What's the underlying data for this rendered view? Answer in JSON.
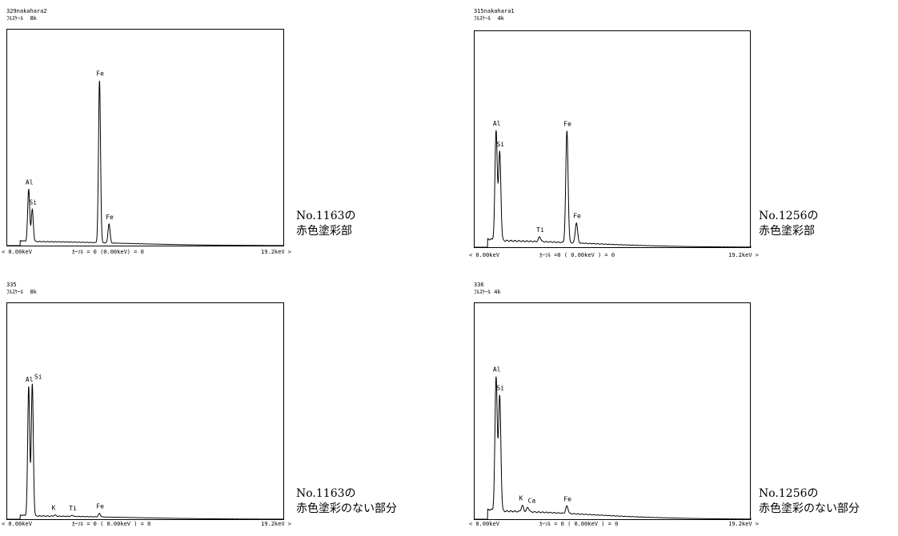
{
  "chart_data": [
    {
      "type": "line",
      "position": "top-left",
      "sample": "329nakahara2",
      "full_scale_label": "ﾌﾙｽｹｰﾙ",
      "full_scale": "8k",
      "x_min_label": "< 0.00keV",
      "x_max_label": "19.2keV >",
      "cursor_text": "ｶｰｿﾙ  =  0   (0.00keV)   =  0",
      "xlim": [
        0,
        19.2
      ],
      "ylim": [
        0,
        8000
      ],
      "caption": [
        "No.1163の",
        "赤色塗彩部"
      ],
      "peaks": [
        {
          "label": "Al",
          "x": 1.49,
          "y": 1950
        },
        {
          "label": "Si",
          "x": 1.74,
          "y": 1200
        },
        {
          "label": "Fe",
          "x": 6.4,
          "y": 6100
        },
        {
          "label": "Fe",
          "x": 7.06,
          "y": 720
        }
      ],
      "baseline": 150,
      "peak_width": 0.07
    },
    {
      "type": "line",
      "position": "top-right",
      "sample": "315nakahara1",
      "full_scale_label": "ﾌﾙｽｹｰﾙ",
      "full_scale": "4k",
      "x_min_label": "< 0.00keV",
      "x_max_label": "19.2keV >",
      "cursor_text": "ｶｰｿﾙ  =0    ( 0.00keV )   = 0",
      "xlim": [
        0,
        19.2
      ],
      "ylim": [
        0,
        4000
      ],
      "caption": [
        "No.1256の",
        "赤色塗彩部"
      ],
      "peaks": [
        {
          "label": "Al",
          "x": 1.49,
          "y": 2050
        },
        {
          "label": "Si",
          "x": 1.74,
          "y": 1650
        },
        {
          "label": "Ti",
          "x": 4.51,
          "y": 90
        },
        {
          "label": "Fe",
          "x": 6.4,
          "y": 2100
        },
        {
          "label": "Fe",
          "x": 7.06,
          "y": 380
        }
      ],
      "baseline": 120,
      "peak_width": 0.08
    },
    {
      "type": "line",
      "position": "bottom-left",
      "sample": "335",
      "full_scale_label": "ﾌﾙｽｹｰﾙ",
      "full_scale": "8k",
      "x_min_label": "< 0.00keV",
      "x_max_label": "19.2keV >",
      "cursor_text": "ｶｰｿﾙ  =  0  ( 0.00keV )  = 0",
      "xlim": [
        0,
        19.2
      ],
      "ylim": [
        0,
        8000
      ],
      "caption": [
        "No.1163の",
        "赤色塗彩のない部分"
      ],
      "peaks": [
        {
          "label": "Al",
          "x": 1.49,
          "y": 4850
        },
        {
          "label": "Si",
          "x": 1.74,
          "y": 4950
        },
        {
          "label": "K",
          "x": 3.31,
          "y": 40
        },
        {
          "label": "Ti",
          "x": 4.51,
          "y": 40
        },
        {
          "label": "Fe",
          "x": 6.4,
          "y": 130
        }
      ],
      "baseline": 120,
      "peak_width": 0.07
    },
    {
      "type": "line",
      "position": "bottom-right",
      "sample": "336",
      "full_scale_label": "ﾌﾙｽｹｰﾙ",
      "full_scale": "4k",
      "x_min_label": "< 0.00keV",
      "x_max_label": "19.2keV >",
      "cursor_text": "ｶｰｿﾙ  =  0  (  0.00keV  )  =  0",
      "xlim": [
        0,
        19.2
      ],
      "ylim": [
        0,
        4000
      ],
      "caption": [
        "No.1256の",
        "赤色塗彩のない部分"
      ],
      "peaks": [
        {
          "label": "Al",
          "x": 1.49,
          "y": 2500
        },
        {
          "label": "Si",
          "x": 1.74,
          "y": 2150
        },
        {
          "label": "K",
          "x": 3.31,
          "y": 110
        },
        {
          "label": "Ca",
          "x": 3.69,
          "y": 80
        },
        {
          "label": "Fe",
          "x": 6.4,
          "y": 140
        }
      ],
      "baseline": 150,
      "peak_width": 0.08
    }
  ]
}
